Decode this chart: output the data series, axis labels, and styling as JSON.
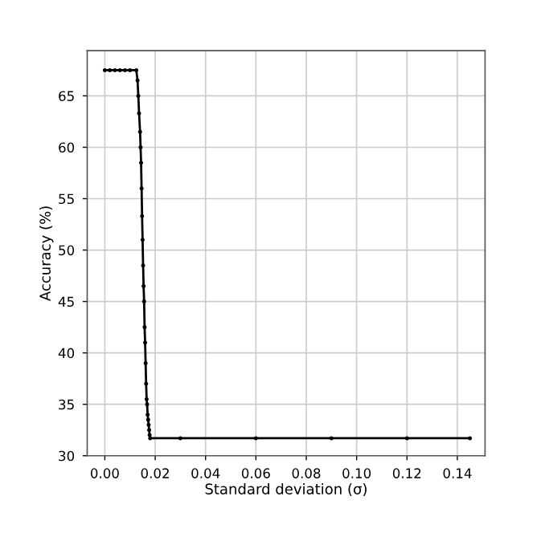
{
  "chart_data": {
    "type": "line",
    "xlabel": "Standard deviation (σ)",
    "ylabel": "Accuracy (%)",
    "series": [
      {
        "color": "#000000",
        "x": [
          0.0,
          0.002,
          0.004,
          0.006,
          0.008,
          0.01,
          0.0125,
          0.013,
          0.0133,
          0.0136,
          0.014,
          0.0142,
          0.0144,
          0.0146,
          0.0148,
          0.015,
          0.0152,
          0.0154,
          0.0156,
          0.0158,
          0.016,
          0.0162,
          0.0164,
          0.0166,
          0.0168,
          0.017,
          0.0172,
          0.0174,
          0.0176,
          0.0178,
          0.018,
          0.03,
          0.06,
          0.09,
          0.12,
          0.145
        ],
        "values": [
          67.5,
          67.5,
          67.5,
          67.5,
          67.5,
          67.5,
          67.5,
          66.5,
          65,
          63.3,
          61.5,
          60,
          58.5,
          56,
          53.3,
          51,
          48.5,
          46.5,
          45,
          42.5,
          41,
          39,
          37,
          35.5,
          35,
          34,
          33.5,
          33,
          32.5,
          32,
          31.7,
          31.7,
          31.7,
          31.7,
          31.7,
          31.7
        ]
      }
    ],
    "marker": "circle",
    "line_style": "solid",
    "xlim": [
      -0.007,
      0.151
    ],
    "xticks": [
      {
        "value": 0.0,
        "label": "0.00"
      },
      {
        "value": 0.02,
        "label": "0.02"
      },
      {
        "value": 0.04,
        "label": "0.04"
      },
      {
        "value": 0.06,
        "label": "0.06"
      },
      {
        "value": 0.08,
        "label": "0.08"
      },
      {
        "value": 0.1,
        "label": "0.10"
      },
      {
        "value": 0.12,
        "label": "0.12"
      },
      {
        "value": 0.14,
        "label": "0.14"
      }
    ],
    "ylim": [
      30,
      69.4
    ],
    "yticks": [
      30,
      35,
      40,
      45,
      50,
      55,
      60,
      65
    ],
    "grid": true
  }
}
